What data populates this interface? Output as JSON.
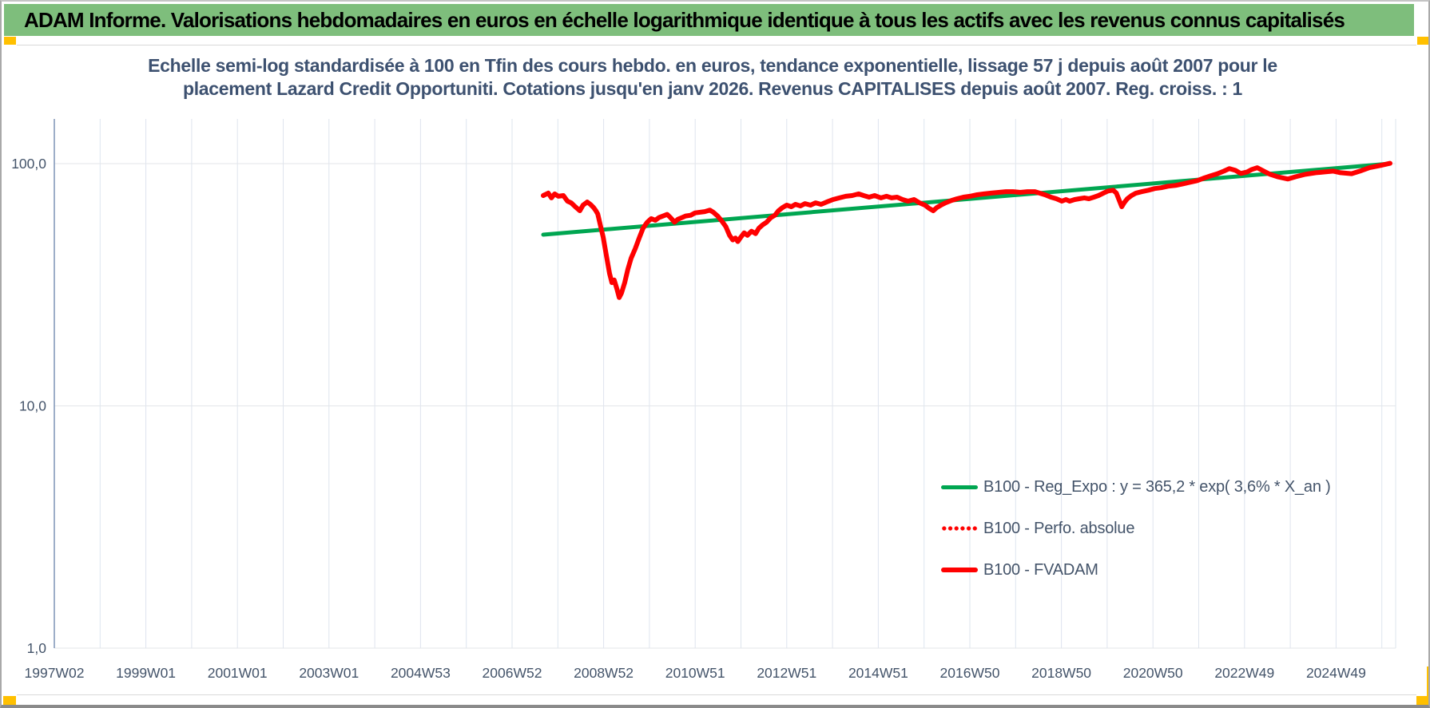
{
  "banner": {
    "title": "ADAM Informe. Valorisations hebdomadaires en euros en échelle logarithmique identique à tous les actifs avec les revenus connus capitalisés"
  },
  "colors": {
    "banner_green": "#7ebe7c",
    "marker_yellow": "#ffc000",
    "title_navy": "#3d5170",
    "axis_text": "#44546a",
    "axis_line": "#7d93b6",
    "grid_vertical": "#dee4ee",
    "grid_horizontal": "#e3e6ea",
    "series_green": "#00a651",
    "series_red": "#ff0000"
  },
  "chart_data": {
    "type": "line",
    "title_line1": "Echelle semi-log standardisée à 100 en Tfin des cours hebdo. en euros, tendance exponentielle, lissage 57 j depuis août 2007 pour le",
    "title_line2": "placement Lazard Credit Opportuniti. Cotations jusqu'en janv 2026. Revenus CAPITALISES depuis août 2007. Reg. croiss. : 1",
    "x_axis": {
      "scale": "linear-weeks",
      "tick_labels": [
        "1997W02",
        "1999W01",
        "2001W01",
        "2003W01",
        "2004W53",
        "2006W52",
        "2008W52",
        "2010W51",
        "2012W51",
        "2014W51",
        "2016W50",
        "2018W50",
        "2020W50",
        "2022W49",
        "2024W49"
      ],
      "tick_years": [
        1997,
        1999,
        2001,
        2003,
        2005,
        2007,
        2009,
        2011,
        2013,
        2015,
        2017,
        2019,
        2021,
        2023,
        2025
      ],
      "minor_gridline_interval_years": 1,
      "range_years": [
        1997.0,
        2026.3
      ]
    },
    "y_axis": {
      "scale": "log",
      "tick_labels": [
        "100,0",
        "10,0",
        "1,0"
      ],
      "tick_values": [
        100,
        10,
        1
      ],
      "range": [
        1,
        155
      ]
    },
    "legend_position": "right-middle",
    "grid": true,
    "series": [
      {
        "id": "reg_expo",
        "name": "B100 - Reg_Expo : y = 365,2 * exp( 3,6% *  X_an )",
        "color": "#00a651",
        "style": "solid",
        "width": 5,
        "points": [
          [
            2007.68,
            50.9
          ],
          [
            2026.18,
            100.0
          ]
        ]
      },
      {
        "id": "perfo_absolue",
        "name": "B100 - Perfo. absolue",
        "color": "#ff0000",
        "style": "dotted",
        "width": 5,
        "points": [],
        "points_same_as": "B100 - FVADAM",
        "note": "coincides with FVADAM, hidden beneath it"
      },
      {
        "id": "fvadam",
        "name": "B100 - FVADAM",
        "color": "#ff0000",
        "style": "solid",
        "width": 6,
        "points": [
          [
            2007.68,
            73.8
          ],
          [
            2007.79,
            75.6
          ],
          [
            2007.86,
            72.2
          ],
          [
            2007.93,
            75.0
          ],
          [
            2008.01,
            73.3
          ],
          [
            2008.12,
            73.8
          ],
          [
            2008.21,
            70.0
          ],
          [
            2008.29,
            68.9
          ],
          [
            2008.38,
            66.4
          ],
          [
            2008.48,
            63.9
          ],
          [
            2008.55,
            67.4
          ],
          [
            2008.64,
            69.4
          ],
          [
            2008.71,
            67.9
          ],
          [
            2008.78,
            65.9
          ],
          [
            2008.83,
            63.9
          ],
          [
            2008.87,
            62.0
          ],
          [
            2008.92,
            56.6
          ],
          [
            2008.99,
            49.8
          ],
          [
            2009.06,
            41.8
          ],
          [
            2009.13,
            35.2
          ],
          [
            2009.18,
            32.3
          ],
          [
            2009.23,
            33.1
          ],
          [
            2009.29,
            30.4
          ],
          [
            2009.34,
            28.0
          ],
          [
            2009.39,
            29.2
          ],
          [
            2009.46,
            32.3
          ],
          [
            2009.53,
            36.7
          ],
          [
            2009.6,
            40.7
          ],
          [
            2009.69,
            44.5
          ],
          [
            2009.78,
            49.5
          ],
          [
            2009.86,
            54.1
          ],
          [
            2009.95,
            57.2
          ],
          [
            2010.04,
            59.3
          ],
          [
            2010.13,
            58.4
          ],
          [
            2010.21,
            59.9
          ],
          [
            2010.3,
            60.8
          ],
          [
            2010.39,
            61.7
          ],
          [
            2010.46,
            59.9
          ],
          [
            2010.55,
            57.3
          ],
          [
            2010.62,
            58.9
          ],
          [
            2010.71,
            59.9
          ],
          [
            2010.79,
            60.8
          ],
          [
            2010.9,
            61.2
          ],
          [
            2011.0,
            62.6
          ],
          [
            2011.21,
            63.4
          ],
          [
            2011.32,
            64.3
          ],
          [
            2011.4,
            62.9
          ],
          [
            2011.49,
            60.8
          ],
          [
            2011.58,
            58.0
          ],
          [
            2011.67,
            54.9
          ],
          [
            2011.75,
            50.6
          ],
          [
            2011.82,
            48.4
          ],
          [
            2011.88,
            49.3
          ],
          [
            2011.93,
            47.7
          ],
          [
            2012.0,
            49.8
          ],
          [
            2012.07,
            51.8
          ],
          [
            2012.14,
            50.6
          ],
          [
            2012.23,
            52.6
          ],
          [
            2012.32,
            51.4
          ],
          [
            2012.39,
            54.1
          ],
          [
            2012.47,
            55.8
          ],
          [
            2012.56,
            57.3
          ],
          [
            2012.65,
            59.8
          ],
          [
            2012.74,
            61.2
          ],
          [
            2012.82,
            63.9
          ],
          [
            2012.91,
            65.9
          ],
          [
            2013.0,
            67.4
          ],
          [
            2013.1,
            66.4
          ],
          [
            2013.19,
            67.9
          ],
          [
            2013.3,
            66.9
          ],
          [
            2013.4,
            68.4
          ],
          [
            2013.52,
            67.4
          ],
          [
            2013.63,
            68.9
          ],
          [
            2013.75,
            67.9
          ],
          [
            2013.87,
            69.4
          ],
          [
            2014.01,
            71.1
          ],
          [
            2014.15,
            72.2
          ],
          [
            2014.29,
            73.3
          ],
          [
            2014.43,
            73.8
          ],
          [
            2014.57,
            75.0
          ],
          [
            2014.68,
            73.8
          ],
          [
            2014.8,
            72.7
          ],
          [
            2014.92,
            73.8
          ],
          [
            2015.06,
            72.2
          ],
          [
            2015.18,
            73.3
          ],
          [
            2015.29,
            72.2
          ],
          [
            2015.41,
            72.7
          ],
          [
            2015.53,
            71.1
          ],
          [
            2015.65,
            70.0
          ],
          [
            2015.78,
            71.1
          ],
          [
            2015.9,
            68.9
          ],
          [
            2016.02,
            67.4
          ],
          [
            2016.11,
            65.4
          ],
          [
            2016.2,
            63.9
          ],
          [
            2016.28,
            65.9
          ],
          [
            2016.37,
            67.4
          ],
          [
            2016.47,
            68.9
          ],
          [
            2016.6,
            70.5
          ],
          [
            2016.72,
            71.6
          ],
          [
            2016.86,
            72.7
          ],
          [
            2017.0,
            73.3
          ],
          [
            2017.16,
            74.4
          ],
          [
            2017.31,
            75.0
          ],
          [
            2017.47,
            75.6
          ],
          [
            2017.63,
            76.1
          ],
          [
            2017.79,
            76.6
          ],
          [
            2017.94,
            76.6
          ],
          [
            2018.1,
            76.1
          ],
          [
            2018.26,
            76.6
          ],
          [
            2018.42,
            76.6
          ],
          [
            2018.52,
            75.6
          ],
          [
            2018.64,
            74.4
          ],
          [
            2018.77,
            72.7
          ],
          [
            2018.89,
            71.6
          ],
          [
            2019.01,
            70.0
          ],
          [
            2019.1,
            71.1
          ],
          [
            2019.18,
            70.0
          ],
          [
            2019.29,
            71.1
          ],
          [
            2019.39,
            71.6
          ],
          [
            2019.5,
            72.2
          ],
          [
            2019.6,
            71.6
          ],
          [
            2019.71,
            72.7
          ],
          [
            2019.81,
            73.8
          ],
          [
            2019.92,
            75.6
          ],
          [
            2020.02,
            77.1
          ],
          [
            2020.13,
            77.7
          ],
          [
            2020.2,
            75.6
          ],
          [
            2020.27,
            70.0
          ],
          [
            2020.32,
            66.4
          ],
          [
            2020.37,
            68.9
          ],
          [
            2020.44,
            71.6
          ],
          [
            2020.53,
            73.8
          ],
          [
            2020.63,
            75.6
          ],
          [
            2020.76,
            76.6
          ],
          [
            2020.9,
            77.7
          ],
          [
            2021.04,
            78.9
          ],
          [
            2021.18,
            79.5
          ],
          [
            2021.33,
            80.7
          ],
          [
            2021.49,
            81.3
          ],
          [
            2021.65,
            82.5
          ],
          [
            2021.81,
            83.8
          ],
          [
            2021.96,
            85.0
          ],
          [
            2022.1,
            87.0
          ],
          [
            2022.25,
            88.9
          ],
          [
            2022.41,
            90.9
          ],
          [
            2022.55,
            93.1
          ],
          [
            2022.67,
            95.4
          ],
          [
            2022.8,
            93.8
          ],
          [
            2022.92,
            91.1
          ],
          [
            2023.06,
            92.4
          ],
          [
            2023.16,
            94.6
          ],
          [
            2023.28,
            96.2
          ],
          [
            2023.42,
            93.1
          ],
          [
            2023.56,
            90.3
          ],
          [
            2023.72,
            88.3
          ],
          [
            2023.95,
            86.4
          ],
          [
            2024.12,
            88.3
          ],
          [
            2024.33,
            90.3
          ],
          [
            2024.56,
            91.7
          ],
          [
            2024.75,
            92.4
          ],
          [
            2024.94,
            93.1
          ],
          [
            2025.1,
            91.7
          ],
          [
            2025.34,
            90.9
          ],
          [
            2025.52,
            93.1
          ],
          [
            2025.73,
            96.2
          ],
          [
            2025.96,
            98.2
          ],
          [
            2026.18,
            100.3
          ]
        ]
      }
    ]
  }
}
